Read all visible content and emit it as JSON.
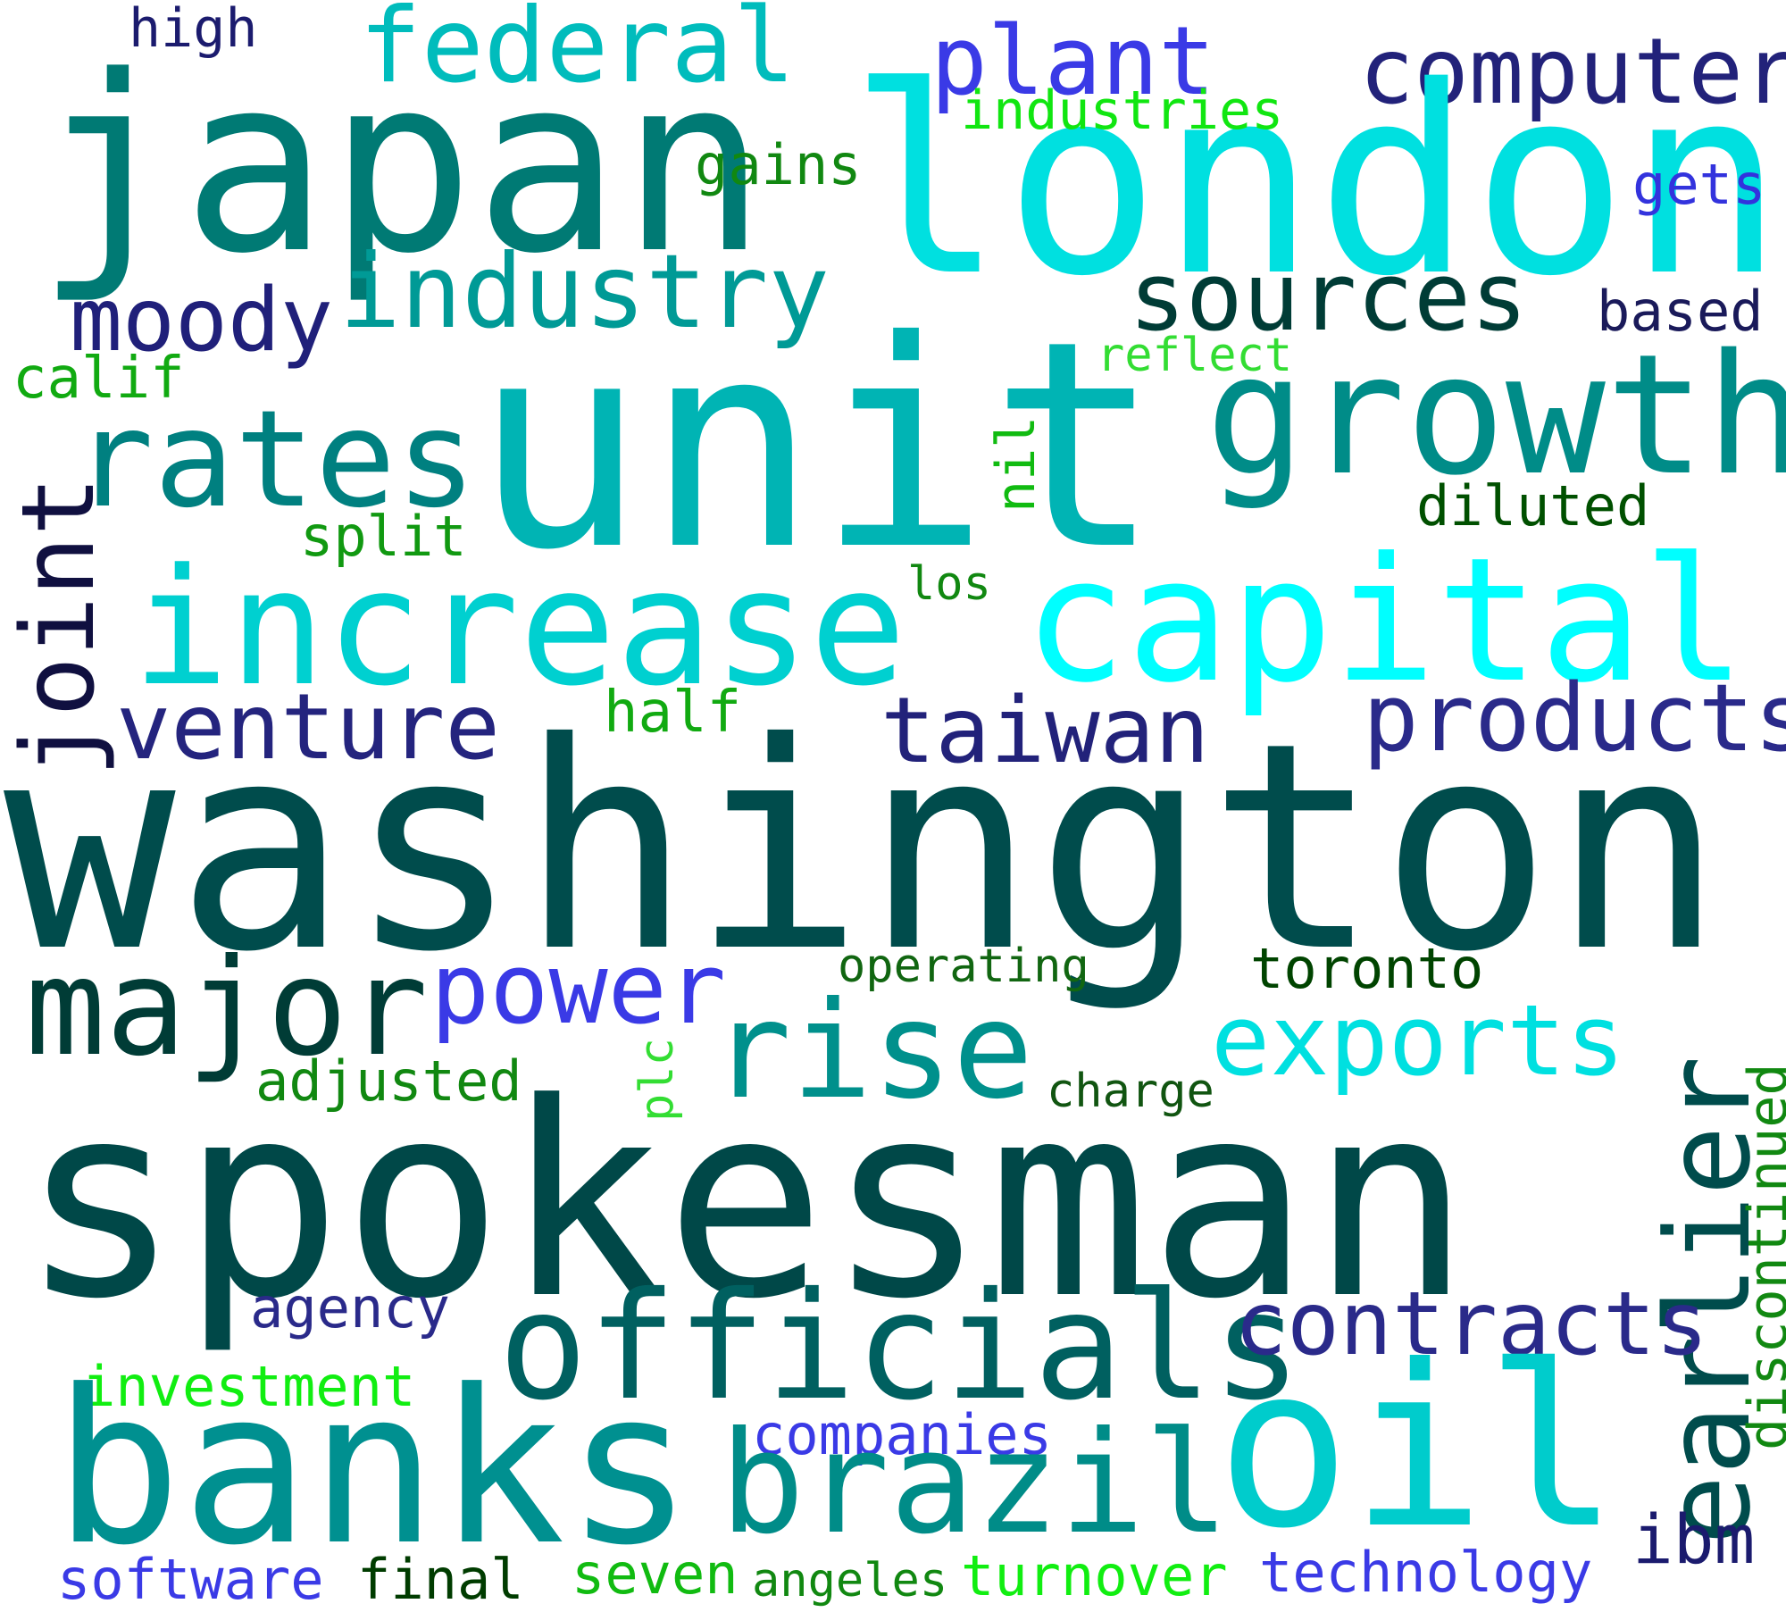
{
  "words": [
    {
      "id": "high",
      "text": "high",
      "color": "#1b1b6e"
    },
    {
      "id": "federal",
      "text": "federal",
      "color": "#00bcbc"
    },
    {
      "id": "plant",
      "text": "plant",
      "color": "#3a3ae6"
    },
    {
      "id": "computer",
      "text": "computer",
      "color": "#22227a"
    },
    {
      "id": "japan",
      "text": "japan",
      "color": "#007a74"
    },
    {
      "id": "london",
      "text": "london",
      "color": "#00e0e0"
    },
    {
      "id": "industries",
      "text": "industries",
      "color": "#11e611"
    },
    {
      "id": "gains",
      "text": "gains",
      "color": "#118811"
    },
    {
      "id": "gets",
      "text": "gets",
      "color": "#3333dd"
    },
    {
      "id": "industry",
      "text": "industry",
      "color": "#009a96"
    },
    {
      "id": "sources",
      "text": "sources",
      "color": "#003c36"
    },
    {
      "id": "moody",
      "text": "moody",
      "color": "#20207a"
    },
    {
      "id": "based",
      "text": "based",
      "color": "#1a1a5a"
    },
    {
      "id": "calif",
      "text": "calif",
      "color": "#11aa11"
    },
    {
      "id": "reflect",
      "text": "reflect",
      "color": "#33dd33"
    },
    {
      "id": "unit",
      "text": "unit",
      "color": "#00b4b4"
    },
    {
      "id": "growth",
      "text": "growth",
      "color": "#008c88"
    },
    {
      "id": "rates",
      "text": "rates",
      "color": "#008080"
    },
    {
      "id": "nil",
      "text": "nil",
      "color": "#11bb11"
    },
    {
      "id": "diluted",
      "text": "diluted",
      "color": "#005000"
    },
    {
      "id": "joint",
      "text": "joint",
      "color": "#101040"
    },
    {
      "id": "split",
      "text": "split",
      "color": "#119911"
    },
    {
      "id": "los",
      "text": "los",
      "color": "#118811"
    },
    {
      "id": "increase",
      "text": "increase",
      "color": "#00d0d0"
    },
    {
      "id": "capital",
      "text": "capital",
      "color": "#00ffff"
    },
    {
      "id": "venture",
      "text": "venture",
      "color": "#24247e"
    },
    {
      "id": "half",
      "text": "half",
      "color": "#11aa11"
    },
    {
      "id": "taiwan",
      "text": "taiwan",
      "color": "#22227a"
    },
    {
      "id": "products",
      "text": "products",
      "color": "#2a2a8a"
    },
    {
      "id": "washington",
      "text": "washington",
      "color": "#004c4c"
    },
    {
      "id": "major",
      "text": "major",
      "color": "#003c36"
    },
    {
      "id": "power",
      "text": "power",
      "color": "#3a3ae6"
    },
    {
      "id": "operating",
      "text": "operating",
      "color": "#116611"
    },
    {
      "id": "toronto",
      "text": "toronto",
      "color": "#004400"
    },
    {
      "id": "rise",
      "text": "rise",
      "color": "#00908c"
    },
    {
      "id": "exports",
      "text": "exports",
      "color": "#00e0e0"
    },
    {
      "id": "earlier",
      "text": "earlier",
      "color": "#004c4c"
    },
    {
      "id": "discontinued",
      "text": "discontinued",
      "color": "#118811"
    },
    {
      "id": "adjusted",
      "text": "adjusted",
      "color": "#118811"
    },
    {
      "id": "plc",
      "text": "plc",
      "color": "#33dd33"
    },
    {
      "id": "charge",
      "text": "charge",
      "color": "#115511"
    },
    {
      "id": "spokesman",
      "text": "spokesman",
      "color": "#004848"
    },
    {
      "id": "agency",
      "text": "agency",
      "color": "#2a2a8a"
    },
    {
      "id": "officials",
      "text": "officials",
      "color": "#006060"
    },
    {
      "id": "contracts",
      "text": "contracts",
      "color": "#2a2a8a"
    },
    {
      "id": "investment",
      "text": "investment",
      "color": "#11ee11"
    },
    {
      "id": "banks",
      "text": "banks",
      "color": "#009090"
    },
    {
      "id": "companies",
      "text": "companies",
      "color": "#3a3ae6"
    },
    {
      "id": "brazil",
      "text": "brazil",
      "color": "#008c88"
    },
    {
      "id": "oil",
      "text": "oil",
      "color": "#00cccc"
    },
    {
      "id": "ibm",
      "text": "ibm",
      "color": "#1b1b6e"
    },
    {
      "id": "software",
      "text": "software",
      "color": "#3a3ae6"
    },
    {
      "id": "final",
      "text": "final",
      "color": "#003c00"
    },
    {
      "id": "seven",
      "text": "seven",
      "color": "#11bb11"
    },
    {
      "id": "angeles",
      "text": "angeles",
      "color": "#118811"
    },
    {
      "id": "turnover",
      "text": "turnover",
      "color": "#11ee11"
    },
    {
      "id": "technology",
      "text": "technology",
      "color": "#3a3ae6"
    }
  ]
}
